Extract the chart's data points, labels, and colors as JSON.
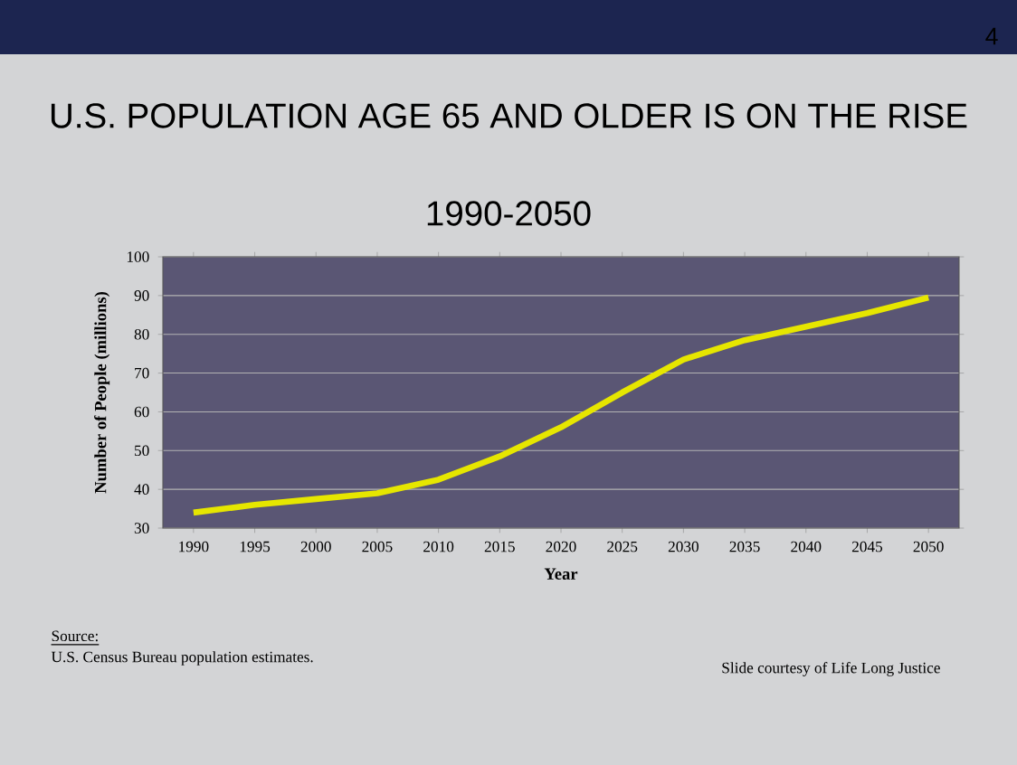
{
  "chart_data": {
    "type": "line",
    "title": "U.S. POPULATION AGE 65 AND OLDER IS ON THE RISE",
    "subtitle": "1990-2050",
    "xlabel": "Year",
    "ylabel": "Number of People (millions)",
    "categories": [
      "1990",
      "1995",
      "2000",
      "2005",
      "2010",
      "2015",
      "2020",
      "2025",
      "2030",
      "2035",
      "2040",
      "2045",
      "2050"
    ],
    "series": [
      {
        "color": "#e6e600",
        "values": [
          34,
          36,
          37.5,
          39,
          42.5,
          48.5,
          56,
          65,
          73.5,
          78.5,
          82,
          85.5,
          89.5
        ]
      }
    ],
    "ylim": [
      30,
      100
    ],
    "yticks": [
      30,
      40,
      50,
      60,
      70,
      80,
      90,
      100
    ],
    "grid": "y",
    "annotations": [
      "Source:",
      "U.S. Census Bureau population estimates.",
      "Slide courtesy of Life Long Justice",
      "4"
    ]
  }
}
